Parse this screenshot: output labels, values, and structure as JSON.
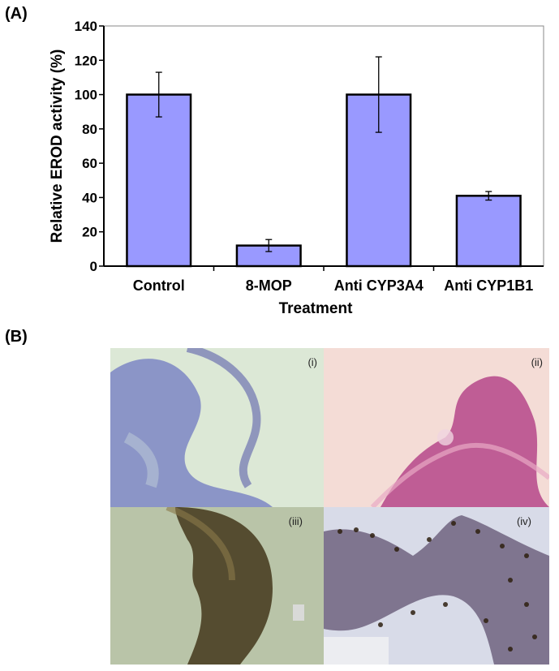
{
  "panel_a_label": "(A)",
  "panel_b_label": "(B)",
  "chart_data": {
    "type": "bar",
    "categories": [
      "Control",
      "8-MOP",
      "Anti CYP3A4",
      "Anti CYP1B1"
    ],
    "values": [
      100,
      12,
      100,
      41
    ],
    "errors": [
      13,
      3.5,
      22,
      2.5
    ],
    "xlabel": "Treatment",
    "ylabel": "Relative EROD activity (%)",
    "ylim": [
      0,
      140
    ],
    "yticks": [
      0,
      20,
      40,
      60,
      80,
      100,
      120,
      140
    ],
    "bar_color": "#9999ff",
    "grid": false,
    "legend": "none"
  },
  "micrographs": {
    "tile_labels": [
      "(i)",
      "(ii)",
      "(iii)",
      "(iv)"
    ],
    "colors": {
      "i_bg": "#dce8d6",
      "i_tissue": "#7d86c4",
      "ii_bg": "#f4dcd6",
      "ii_tissue": "#b5468a",
      "iii_bg": "#b9c4a8",
      "iii_tissue": "#4a3f22",
      "iv_bg": "#d8dbe8",
      "iv_tissue": "#5a4a6a"
    }
  }
}
